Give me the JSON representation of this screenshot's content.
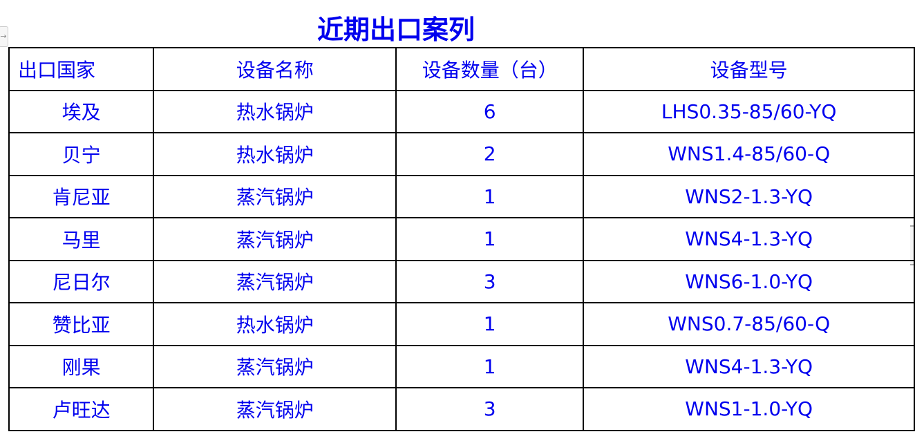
{
  "title": "近期出口案列",
  "table": {
    "headers": [
      "出口国家",
      "设备名称",
      "设备数量（台）",
      "设备型号"
    ],
    "rows": [
      [
        "埃及",
        "热水锅炉",
        "6",
        "LHS0.35-85/60-YQ"
      ],
      [
        "贝宁",
        "热水锅炉",
        "2",
        "WNS1.4-85/60-Q"
      ],
      [
        "肯尼亚",
        "蒸汽锅炉",
        "1",
        "WNS2-1.3-YQ"
      ],
      [
        "马里",
        "蒸汽锅炉",
        "1",
        "WNS4-1.3-YQ"
      ],
      [
        "尼日尔",
        "蒸汽锅炉",
        "3",
        "WNS6-1.0-YQ"
      ],
      [
        "赞比亚",
        "热水锅炉",
        "1",
        "WNS0.7-85/60-Q"
      ],
      [
        "刚果",
        "蒸汽锅炉",
        "1",
        "WNS4-1.3-YQ"
      ],
      [
        "卢旺达",
        "蒸汽锅炉",
        "3",
        "WNS1-1.0-YQ"
      ]
    ]
  }
}
